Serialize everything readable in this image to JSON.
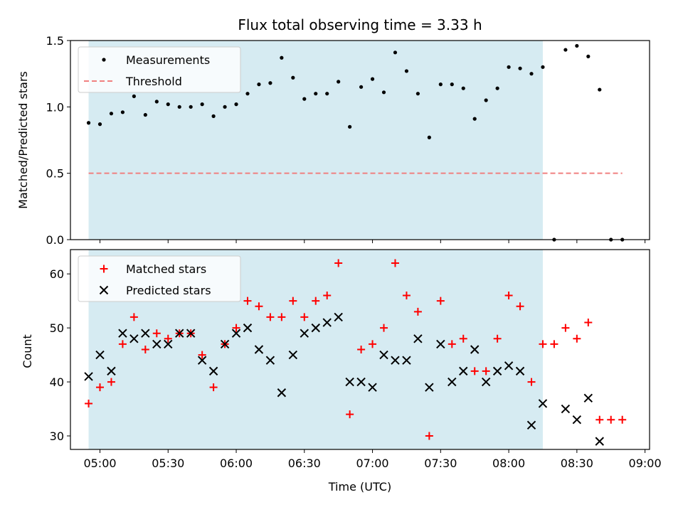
{
  "chart_data": [
    {
      "type": "scatter",
      "title": "Flux total observing time = 3.33 h",
      "xlabel": "",
      "ylabel": "Matched/Predicted stars",
      "ylim": [
        0,
        1.5
      ],
      "yticks": [
        "0.0",
        "0.5",
        "1.0",
        "1.5"
      ],
      "xlim": [
        "04:47",
        "09:02"
      ],
      "shaded_span": [
        "04:55",
        "08:15"
      ],
      "shade_color": "#add8e6",
      "legend": {
        "position": "upper-left",
        "entries": [
          "Measurements",
          "Threshold"
        ]
      },
      "series": [
        {
          "name": "Measurements",
          "marker": "dot",
          "color": "#000000",
          "x": [
            "04:55",
            "05:00",
            "05:05",
            "05:10",
            "05:15",
            "05:20",
            "05:25",
            "05:30",
            "05:35",
            "05:40",
            "05:45",
            "05:50",
            "05:55",
            "06:00",
            "06:05",
            "06:10",
            "06:15",
            "06:20",
            "06:25",
            "06:30",
            "06:35",
            "06:40",
            "06:45",
            "06:50",
            "06:55",
            "07:00",
            "07:05",
            "07:10",
            "07:15",
            "07:20",
            "07:25",
            "07:30",
            "07:35",
            "07:40",
            "07:45",
            "07:50",
            "07:55",
            "08:00",
            "08:05",
            "08:10",
            "08:15",
            "08:20",
            "08:25",
            "08:30",
            "08:35",
            "08:40",
            "08:45",
            "08:50"
          ],
          "y": [
            0.88,
            0.87,
            0.95,
            0.96,
            1.08,
            0.94,
            1.04,
            1.02,
            1.0,
            1.0,
            1.02,
            0.93,
            1.0,
            1.02,
            1.1,
            1.17,
            1.18,
            1.37,
            1.22,
            1.06,
            1.1,
            1.1,
            1.19,
            0.85,
            1.15,
            1.21,
            1.11,
            1.41,
            1.27,
            1.1,
            0.77,
            1.17,
            1.17,
            1.14,
            0.91,
            1.05,
            1.14,
            1.3,
            1.29,
            1.25,
            1.3,
            0.0,
            1.43,
            1.46,
            1.38,
            1.13,
            0.0,
            0.0
          ]
        },
        {
          "name": "Threshold",
          "marker": "dashed-line",
          "color": "#f08080",
          "x": [
            "04:55",
            "08:50"
          ],
          "y": [
            0.5,
            0.5
          ]
        }
      ]
    },
    {
      "type": "scatter",
      "title": "",
      "xlabel": "Time (UTC)",
      "ylabel": "Count",
      "ylim": [
        27.5,
        64.5
      ],
      "yticks": [
        "30",
        "40",
        "50",
        "60"
      ],
      "xlim": [
        "04:47",
        "09:02"
      ],
      "xticks": [
        "05:00",
        "05:30",
        "06:00",
        "06:30",
        "07:00",
        "07:30",
        "08:00",
        "08:30",
        "09:00"
      ],
      "shaded_span": [
        "04:55",
        "08:15"
      ],
      "shade_color": "#add8e6",
      "legend": {
        "position": "upper-left",
        "entries": [
          "Matched stars",
          "Predicted stars"
        ]
      },
      "series": [
        {
          "name": "Matched stars",
          "marker": "plus",
          "color": "#ff0000",
          "x": [
            "04:55",
            "05:00",
            "05:05",
            "05:10",
            "05:15",
            "05:20",
            "05:25",
            "05:30",
            "05:35",
            "05:40",
            "05:45",
            "05:50",
            "05:55",
            "06:00",
            "06:05",
            "06:10",
            "06:15",
            "06:20",
            "06:25",
            "06:30",
            "06:35",
            "06:40",
            "06:45",
            "06:50",
            "06:55",
            "07:00",
            "07:05",
            "07:10",
            "07:15",
            "07:20",
            "07:25",
            "07:30",
            "07:35",
            "07:40",
            "07:45",
            "07:50",
            "07:55",
            "08:00",
            "08:05",
            "08:10",
            "08:15",
            "08:20",
            "08:25",
            "08:30",
            "08:35",
            "08:40",
            "08:45",
            "08:50"
          ],
          "y": [
            36,
            39,
            40,
            47,
            52,
            46,
            49,
            48,
            49,
            49,
            45,
            39,
            47,
            50,
            55,
            54,
            52,
            52,
            55,
            52,
            55,
            56,
            62,
            34,
            46,
            47,
            50,
            62,
            56,
            53,
            30,
            55,
            47,
            48,
            42,
            42,
            48,
            56,
            54,
            40,
            47,
            47,
            50,
            48,
            51,
            33,
            33,
            33
          ]
        },
        {
          "name": "Predicted stars",
          "marker": "x",
          "color": "#000000",
          "x": [
            "04:55",
            "05:00",
            "05:05",
            "05:10",
            "05:15",
            "05:20",
            "05:25",
            "05:30",
            "05:35",
            "05:40",
            "05:45",
            "05:50",
            "05:55",
            "06:00",
            "06:05",
            "06:10",
            "06:15",
            "06:20",
            "06:25",
            "06:30",
            "06:35",
            "06:40",
            "06:45",
            "06:50",
            "06:55",
            "07:00",
            "07:05",
            "07:10",
            "07:15",
            "07:20",
            "07:25",
            "07:30",
            "07:35",
            "07:40",
            "07:45",
            "07:50",
            "07:55",
            "08:00",
            "08:05",
            "08:10",
            "08:15",
            "08:25",
            "08:30",
            "08:35",
            "08:40"
          ],
          "y": [
            41,
            45,
            42,
            49,
            48,
            49,
            47,
            47,
            49,
            49,
            44,
            42,
            47,
            49,
            50,
            46,
            44,
            38,
            45,
            49,
            50,
            51,
            52,
            40,
            40,
            39,
            45,
            44,
            44,
            48,
            39,
            47,
            40,
            42,
            46,
            40,
            42,
            43,
            42,
            32,
            36,
            35,
            33,
            37,
            29
          ]
        }
      ]
    }
  ]
}
